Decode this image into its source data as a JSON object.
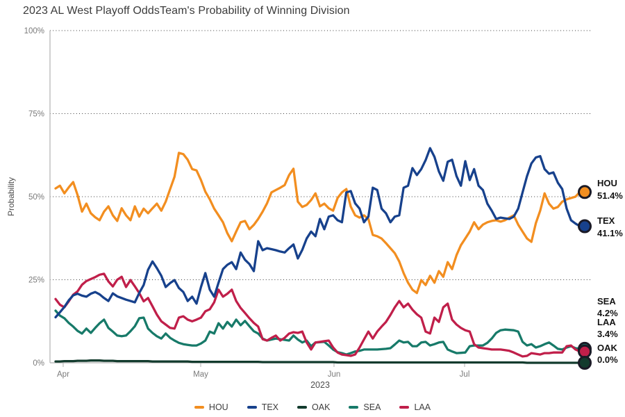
{
  "title": {
    "part1": "2023 AL West Playoff Odds",
    "part2": "Team's Probability of Winning Division"
  },
  "chart_data": {
    "type": "line",
    "title": "2023 AL West Playoff Odds",
    "subtitle": "Team's Probability of Winning Division",
    "ylabel": "Probability",
    "xlabel": "2023",
    "ylim": [
      0,
      100
    ],
    "ytick_values": [
      0,
      25,
      50,
      75,
      100
    ],
    "ytick_labels": [
      "0%",
      "25%",
      "50%",
      "75%",
      "100%"
    ],
    "grid": "dotted-horizontal",
    "legend_position": "bottom",
    "legend": [
      "HOU",
      "TEX",
      "OAK",
      "SEA",
      "LAA"
    ],
    "x_months": [
      {
        "label": "Apr",
        "day_index": 1.73
      },
      {
        "label": "May",
        "day_index": 32.94
      },
      {
        "label": "Jun",
        "day_index": 63.2
      },
      {
        "label": "Jul",
        "day_index": 92.84
      }
    ],
    "x_range_days": 120,
    "draw_order": [
      "HOU",
      "OAK",
      "SEA",
      "LAA",
      "TEX"
    ],
    "dot_order": [
      "SEA",
      "LAA",
      "OAK",
      "HOU",
      "TEX"
    ],
    "end_dot_ring_color": "#1a1a26",
    "annotations": [
      {
        "team": "HOU",
        "value": "51.4%"
      },
      {
        "team": "TEX",
        "value": "41.1%"
      },
      {
        "team": "SEA",
        "value": "4.2%"
      },
      {
        "team": "LAA",
        "value": "3.4%"
      },
      {
        "team": "OAK",
        "value": "0.0%"
      }
    ],
    "series": [
      {
        "name": "HOU",
        "color": "#F28E20",
        "final_label": "51.4%",
        "values": [
          52.5,
          53.3,
          51.0,
          52.8,
          54.4,
          50.5,
          45.5,
          47.9,
          45.0,
          43.8,
          42.9,
          45.5,
          47.1,
          44.4,
          42.7,
          46.5,
          44.4,
          42.9,
          47.1,
          44.0,
          46.4,
          45.0,
          46.5,
          47.9,
          45.8,
          48.5,
          52.3,
          56.0,
          63.2,
          62.8,
          61.1,
          58.3,
          57.9,
          55.0,
          51.5,
          49.2,
          46.4,
          44.4,
          42.3,
          39.0,
          36.6,
          39.5,
          42.3,
          42.7,
          40.2,
          41.5,
          43.3,
          45.5,
          48.0,
          51.3,
          52.0,
          52.7,
          53.5,
          56.5,
          58.4,
          48.5,
          46.9,
          47.5,
          49.0,
          51.0,
          47.1,
          47.9,
          46.5,
          45.8,
          49.6,
          51.3,
          52.3,
          47.0,
          44.4,
          43.7,
          44.4,
          43.3,
          38.5,
          38.1,
          37.4,
          36.0,
          34.5,
          33.0,
          30.5,
          27.0,
          24.1,
          22.0,
          21.0,
          24.9,
          23.4,
          26.2,
          24.1,
          27.6,
          25.9,
          30.3,
          28.2,
          32.4,
          35.4,
          37.4,
          39.5,
          42.3,
          40.2,
          41.6,
          42.3,
          42.7,
          42.9,
          42.5,
          42.9,
          43.7,
          44.4,
          41.6,
          39.5,
          37.4,
          36.4,
          42.0,
          45.8,
          51.0,
          47.9,
          46.4,
          46.9,
          48.5,
          49.2,
          49.6,
          50.0,
          51.4
        ]
      },
      {
        "name": "TEX",
        "color": "#17418C",
        "final_label": "41.1%",
        "values": [
          13.7,
          15.2,
          16.8,
          18.8,
          20.3,
          20.8,
          20.2,
          19.9,
          20.8,
          21.3,
          20.6,
          19.5,
          18.6,
          20.9,
          20.0,
          19.5,
          19.0,
          18.6,
          18.2,
          21.0,
          23.4,
          28.0,
          30.5,
          28.5,
          26.2,
          22.8,
          24.0,
          24.9,
          22.5,
          21.3,
          18.6,
          19.9,
          17.8,
          22.8,
          27.0,
          22.0,
          19.9,
          24.1,
          28.2,
          29.5,
          30.3,
          28.2,
          33.2,
          31.0,
          29.7,
          27.6,
          36.6,
          33.9,
          34.5,
          34.2,
          33.9,
          33.5,
          33.2,
          34.5,
          35.6,
          31.4,
          34.0,
          37.4,
          39.5,
          38.1,
          43.3,
          40.2,
          44.0,
          44.4,
          42.9,
          42.3,
          51.3,
          51.7,
          48.0,
          46.4,
          42.3,
          44.0,
          52.7,
          52.0,
          46.4,
          45.0,
          42.3,
          44.0,
          44.4,
          52.7,
          53.3,
          58.6,
          56.5,
          58.3,
          61.0,
          64.6,
          62.0,
          57.6,
          54.8,
          60.5,
          61.1,
          56.2,
          53.3,
          60.7,
          55.0,
          58.3,
          53.3,
          52.0,
          47.9,
          45.8,
          43.3,
          43.7,
          43.5,
          43.3,
          44.0,
          46.4,
          51.3,
          56.2,
          60.0,
          61.8,
          62.2,
          58.3,
          56.9,
          57.3,
          54.2,
          52.3,
          46.4,
          42.9,
          41.9,
          41.1
        ]
      },
      {
        "name": "OAK",
        "color": "#123B2D",
        "final_label": "0.0%",
        "values": [
          0.4,
          0.4,
          0.5,
          0.5,
          0.5,
          0.6,
          0.6,
          0.6,
          0.7,
          0.7,
          0.7,
          0.6,
          0.6,
          0.6,
          0.5,
          0.5,
          0.5,
          0.5,
          0.5,
          0.5,
          0.5,
          0.5,
          0.4,
          0.4,
          0.4,
          0.4,
          0.4,
          0.4,
          0.4,
          0.4,
          0.4,
          0.3,
          0.3,
          0.3,
          0.3,
          0.3,
          0.3,
          0.3,
          0.3,
          0.3,
          0.3,
          0.3,
          0.3,
          0.3,
          0.3,
          0.3,
          0.3,
          0.2,
          0.2,
          0.2,
          0.2,
          0.2,
          0.2,
          0.2,
          0.2,
          0.2,
          0.2,
          0.2,
          0.2,
          0.2,
          0.2,
          0.2,
          0.2,
          0.2,
          0.1,
          0.1,
          0.1,
          0.1,
          0.1,
          0.1,
          0.1,
          0.1,
          0.1,
          0.1,
          0.1,
          0.1,
          0.1,
          0.1,
          0.1,
          0.1,
          0.1,
          0.1,
          0.1,
          0.1,
          0.1,
          0.1,
          0.1,
          0.1,
          0.1,
          0.1,
          0.1,
          0.1,
          0.1,
          0.1,
          0.1,
          0.1,
          0.1,
          0.1,
          0.1,
          0.1,
          0.1,
          0.1,
          0.1,
          0.1,
          0.1,
          0.1,
          0.1,
          0.0,
          0.0,
          0.0,
          0.0,
          0.0,
          0.0,
          0.0,
          0.0,
          0.0,
          0.0,
          0.0,
          0.0,
          0.0
        ]
      },
      {
        "name": "SEA",
        "color": "#177A69",
        "final_label": "4.2%",
        "values": [
          15.7,
          14.2,
          13.4,
          12.0,
          10.9,
          9.6,
          8.8,
          10.3,
          9.0,
          10.5,
          11.9,
          13.0,
          10.5,
          9.4,
          8.2,
          8.0,
          8.2,
          9.5,
          11.0,
          13.4,
          13.6,
          10.3,
          9.0,
          8.0,
          7.3,
          8.8,
          7.5,
          6.7,
          6.0,
          5.6,
          5.4,
          5.2,
          5.2,
          5.8,
          6.7,
          9.4,
          8.8,
          11.9,
          10.3,
          12.3,
          10.9,
          13.0,
          11.3,
          12.6,
          11.0,
          9.5,
          8.8,
          7.3,
          6.7,
          7.0,
          7.3,
          7.1,
          6.9,
          6.7,
          8.2,
          7.0,
          6.1,
          6.7,
          5.0,
          6.1,
          6.2,
          6.3,
          5.2,
          4.0,
          3.2,
          2.9,
          2.5,
          2.9,
          3.4,
          3.6,
          4.0,
          4.0,
          4.0,
          4.0,
          4.1,
          4.2,
          4.4,
          5.5,
          6.7,
          6.1,
          6.3,
          5.0,
          5.0,
          6.1,
          6.3,
          5.2,
          5.6,
          6.1,
          6.3,
          4.0,
          3.4,
          2.9,
          3.0,
          3.1,
          5.0,
          5.2,
          5.2,
          5.2,
          6.0,
          7.3,
          9.0,
          9.8,
          10.0,
          9.9,
          9.8,
          9.4,
          6.3,
          5.2,
          5.6,
          4.6,
          5.0,
          5.6,
          6.1,
          5.2,
          4.2,
          4.0,
          4.6,
          5.0,
          4.4,
          4.2
        ]
      },
      {
        "name": "LAA",
        "color": "#C01F4A",
        "final_label": "3.4%",
        "values": [
          19.2,
          17.5,
          16.7,
          18.5,
          20.5,
          21.5,
          23.5,
          24.6,
          25.2,
          25.8,
          26.5,
          26.8,
          24.5,
          23.0,
          25.0,
          25.9,
          22.8,
          24.9,
          23.0,
          21.0,
          18.5,
          19.5,
          17.0,
          14.5,
          12.5,
          11.5,
          10.5,
          10.3,
          13.6,
          14.0,
          13.0,
          12.5,
          13.0,
          13.6,
          15.5,
          16.1,
          18.2,
          22.0,
          19.9,
          20.8,
          22.0,
          18.6,
          16.5,
          15.0,
          13.4,
          12.0,
          10.9,
          7.1,
          6.7,
          7.5,
          8.2,
          6.7,
          7.5,
          8.8,
          9.2,
          9.0,
          9.4,
          6.1,
          4.0,
          6.1,
          6.3,
          6.5,
          6.7,
          4.6,
          3.1,
          2.5,
          2.3,
          2.1,
          2.5,
          4.6,
          7.0,
          9.4,
          7.3,
          9.4,
          10.9,
          12.3,
          14.4,
          16.7,
          18.6,
          16.7,
          17.8,
          16.0,
          14.6,
          13.6,
          9.4,
          8.8,
          13.6,
          12.3,
          16.7,
          17.8,
          13.0,
          11.5,
          10.5,
          9.8,
          9.4,
          5.6,
          4.6,
          4.4,
          4.2,
          4.0,
          4.0,
          4.0,
          3.8,
          3.6,
          3.1,
          2.5,
          1.9,
          2.1,
          2.9,
          2.7,
          2.5,
          2.9,
          2.9,
          3.1,
          3.1,
          3.1,
          5.0,
          5.2,
          4.0,
          3.4
        ]
      }
    ],
    "colors": {
      "grid_dots": "#3a3a3a",
      "axis": "#bdbdbd",
      "tick_text": "#7a7a7a",
      "axis_title": "#4d4d4d",
      "annotation_text": "#141414",
      "title_text": "#3b3b3b"
    }
  }
}
